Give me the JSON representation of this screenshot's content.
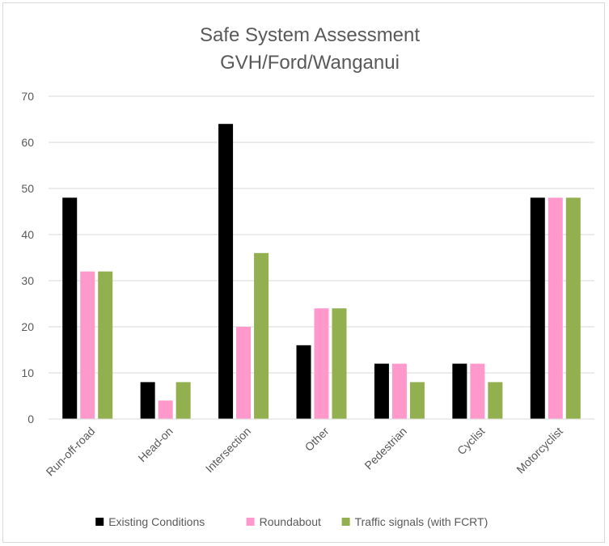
{
  "chart_data": {
    "type": "bar",
    "title": [
      "Safe System Assessment",
      "GVH/Ford/Wanganui"
    ],
    "xlabel": "",
    "ylabel": "",
    "ylim": [
      0,
      70
    ],
    "yticks": [
      0,
      10,
      20,
      30,
      40,
      50,
      60,
      70
    ],
    "grid": true,
    "legend_position": "bottom",
    "categories": [
      "Run-off-road",
      "Head-on",
      "Intersection",
      "Other",
      "Pedestrian",
      "Cyclist",
      "Motorcyclist"
    ],
    "series": [
      {
        "name": "Existing Conditions",
        "color": "#000000",
        "values": [
          48,
          8,
          64,
          16,
          12,
          12,
          48
        ]
      },
      {
        "name": "Roundabout",
        "color": "#ff99cc",
        "values": [
          32,
          4,
          20,
          24,
          12,
          12,
          48
        ]
      },
      {
        "name": "Traffic signals (with FCRT)",
        "color": "#92b050",
        "values": [
          32,
          8,
          36,
          24,
          8,
          8,
          48
        ]
      }
    ]
  }
}
